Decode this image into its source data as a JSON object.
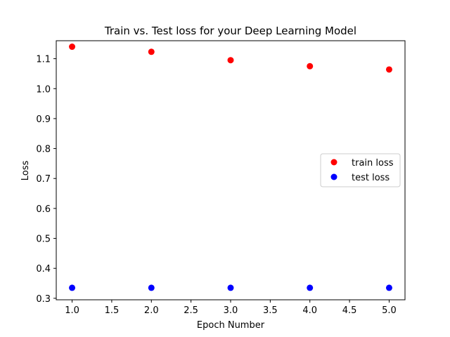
{
  "chart_data": {
    "type": "scatter",
    "title": "Train vs. Test loss for your Deep Learning Model",
    "xlabel": "Epoch Number",
    "ylabel": "Loss",
    "xlim": [
      0.8,
      5.2
    ],
    "ylim": [
      0.295,
      1.16
    ],
    "xticks": [
      1.0,
      1.5,
      2.0,
      2.5,
      3.0,
      3.5,
      4.0,
      4.5,
      5.0
    ],
    "xtick_labels": [
      "1.0",
      "1.5",
      "2.0",
      "2.5",
      "3.0",
      "3.5",
      "4.0",
      "4.5",
      "5.0"
    ],
    "yticks": [
      0.3,
      0.4,
      0.5,
      0.6,
      0.7,
      0.8,
      0.9,
      1.0,
      1.1
    ],
    "ytick_labels": [
      "0.3",
      "0.4",
      "0.5",
      "0.6",
      "0.7",
      "0.8",
      "0.9",
      "1.0",
      "1.1"
    ],
    "grid": false,
    "legend_position": "center-right",
    "series": [
      {
        "name": "train loss",
        "color": "#ff0000",
        "x": [
          1,
          2,
          3,
          4,
          5
        ],
        "y": [
          1.14,
          1.123,
          1.095,
          1.075,
          1.064
        ]
      },
      {
        "name": "test loss",
        "color": "#0000ff",
        "x": [
          1,
          2,
          3,
          4,
          5
        ],
        "y": [
          0.335,
          0.335,
          0.335,
          0.335,
          0.335
        ]
      }
    ]
  }
}
